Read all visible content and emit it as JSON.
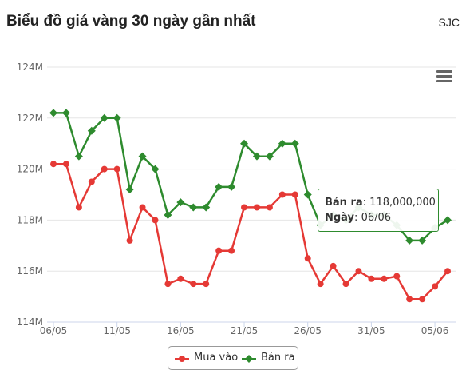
{
  "header": {
    "title": "Biểu đồ giá vàng 30 ngày gần nhất",
    "source": "SJC"
  },
  "colors": {
    "buy": "#e53935",
    "sell": "#2e8b2e",
    "grid": "#e6e6e6",
    "axis": "#ccd6eb"
  },
  "legend": {
    "buy_label": "Mua vào",
    "sell_label": "Bán ra"
  },
  "tooltip": {
    "label1": "Bán ra",
    "value1": "118,000,000",
    "label2": "Ngày",
    "value2": "06/06"
  },
  "chart_data": {
    "type": "line",
    "title": "Biểu đồ giá vàng 30 ngày gần nhất",
    "y_tick_labels": [
      "114M",
      "116M",
      "118M",
      "120M",
      "122M",
      "124M"
    ],
    "y_ticks": [
      114,
      116,
      118,
      120,
      122,
      124
    ],
    "ylim": [
      114,
      124
    ],
    "x_tick_labels": [
      "06/05",
      "11/05",
      "16/05",
      "21/05",
      "26/05",
      "31/05",
      "05/06"
    ],
    "grid": true,
    "legend_position": "bottom-center",
    "x": [
      "06/05",
      "07/05",
      "08/05",
      "09/05",
      "10/05",
      "11/05",
      "12/05",
      "13/05",
      "14/05",
      "15/05",
      "16/05",
      "17/05",
      "18/05",
      "19/05",
      "20/05",
      "21/05",
      "22/05",
      "23/05",
      "24/05",
      "25/05",
      "26/05",
      "27/05",
      "28/05",
      "29/05",
      "30/05",
      "31/05",
      "01/06",
      "02/06",
      "03/06",
      "04/06",
      "05/06",
      "06/06"
    ],
    "series": [
      {
        "name": "Mua vào",
        "values": [
          120.2,
          120.2,
          118.5,
          119.5,
          120.0,
          120.0,
          117.2,
          118.5,
          118.0,
          115.5,
          115.7,
          115.5,
          115.5,
          116.8,
          116.8,
          118.5,
          118.5,
          118.5,
          119.0,
          119.0,
          116.5,
          115.5,
          116.2,
          115.5,
          116.0,
          115.7,
          115.7,
          115.8,
          114.9,
          114.9,
          115.4,
          116.0
        ]
      },
      {
        "name": "Bán ra",
        "values": [
          122.2,
          122.2,
          120.5,
          121.5,
          122.0,
          122.0,
          119.2,
          120.5,
          120.0,
          118.2,
          118.7,
          118.5,
          118.5,
          119.3,
          119.3,
          121.0,
          120.5,
          120.5,
          121.0,
          121.0,
          119.0,
          117.8,
          118.2,
          118.0,
          118.5,
          118.2,
          118.2,
          117.8,
          117.2,
          117.2,
          117.7,
          118.0
        ]
      }
    ]
  }
}
